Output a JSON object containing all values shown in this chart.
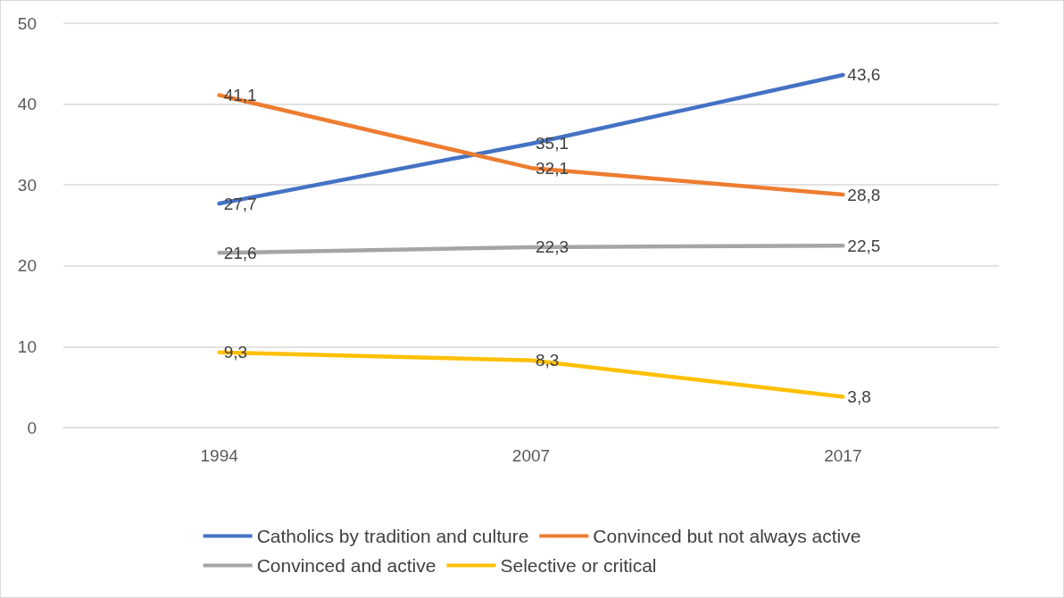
{
  "chart_data": {
    "type": "line",
    "categories": [
      "1994",
      "2007",
      "2017"
    ],
    "series": [
      {
        "name": "Catholics by tradition and culture",
        "color": "#4472c4",
        "values": [
          27.7,
          35.1,
          43.6
        ],
        "value_labels": [
          "27,7",
          "35,1",
          "43,6"
        ]
      },
      {
        "name": "Convinced but not always active",
        "color": "#ed7d31",
        "values": [
          41.1,
          32.1,
          28.8
        ],
        "value_labels": [
          "41,1",
          "32,1",
          "28,8"
        ]
      },
      {
        "name": "Convinced and active",
        "color": "#a5a5a5",
        "values": [
          21.6,
          22.3,
          22.5
        ],
        "value_labels": [
          "21,6",
          "22,3",
          "22,5"
        ]
      },
      {
        "name": "Selective or critical",
        "color": "#ffc000",
        "values": [
          9.3,
          8.3,
          3.8
        ],
        "value_labels": [
          "9,3",
          "8,3",
          "3,8"
        ]
      }
    ],
    "ylim": [
      0,
      50
    ],
    "yticks": [
      0,
      10,
      20,
      30,
      40,
      50
    ],
    "grid": "y",
    "legend": "bottom",
    "marker": "none",
    "line_style": "solid"
  }
}
